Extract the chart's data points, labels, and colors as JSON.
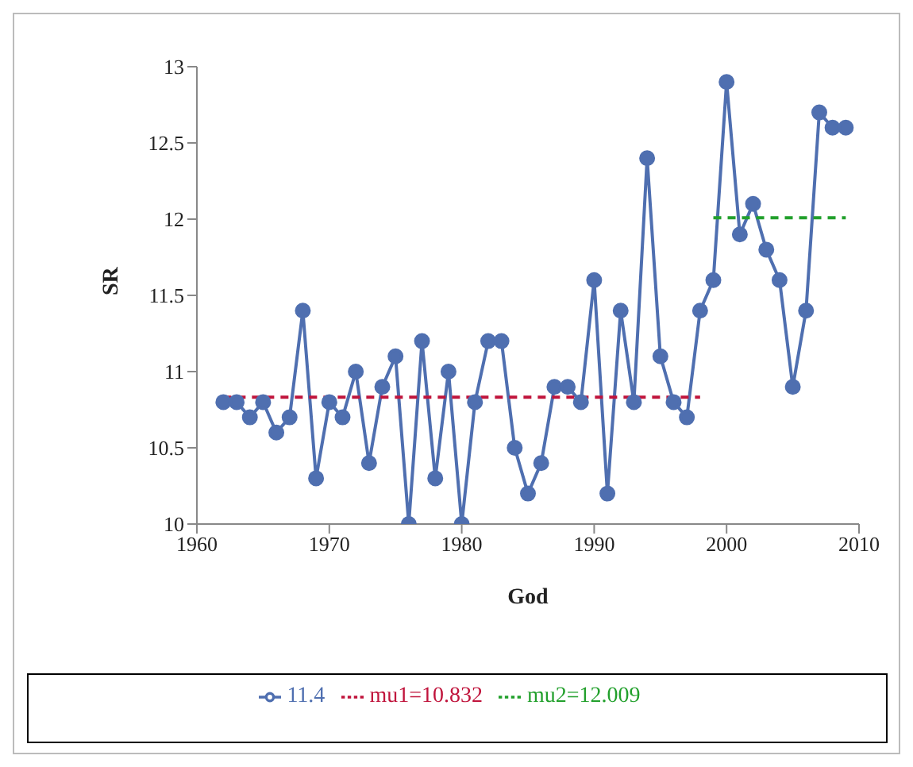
{
  "chart_data": {
    "type": "line",
    "xlabel": "God",
    "ylabel": "SR",
    "x": [
      1962,
      1963,
      1964,
      1965,
      1966,
      1967,
      1968,
      1969,
      1970,
      1971,
      1972,
      1973,
      1974,
      1975,
      1976,
      1977,
      1978,
      1979,
      1980,
      1981,
      1982,
      1983,
      1984,
      1985,
      1986,
      1987,
      1988,
      1989,
      1990,
      1991,
      1992,
      1993,
      1994,
      1995,
      1996,
      1997,
      1998,
      1999,
      2000,
      2001,
      2002,
      2003,
      2004,
      2005,
      2006,
      2007,
      2008,
      2009
    ],
    "series": [
      {
        "name": "11.4",
        "color": "#4f6fb0",
        "marker": "circle",
        "line_style": "solid",
        "values": [
          10.8,
          10.8,
          10.7,
          10.8,
          10.6,
          10.7,
          11.4,
          10.3,
          10.8,
          10.7,
          11.0,
          10.4,
          10.9,
          11.1,
          10.0,
          11.2,
          10.3,
          11.0,
          10.0,
          10.8,
          11.2,
          11.2,
          10.5,
          10.2,
          10.4,
          10.9,
          10.9,
          10.8,
          11.6,
          10.2,
          11.4,
          10.8,
          12.4,
          11.1,
          10.8,
          10.7,
          11.4,
          11.6,
          12.9,
          11.9,
          12.1,
          11.8,
          11.6,
          10.9,
          11.4,
          12.7,
          12.6,
          12.6
        ]
      },
      {
        "name": "mu1=10.832",
        "color": "#c0143c",
        "marker": "none",
        "line_style": "dashed",
        "x": [
          1962,
          1998
        ],
        "values": [
          10.832,
          10.832
        ]
      },
      {
        "name": "mu2=12.009",
        "color": "#22a02c",
        "marker": "none",
        "line_style": "dashed",
        "x": [
          1999,
          2009
        ],
        "values": [
          12.009,
          12.009
        ]
      }
    ],
    "xlim": [
      1960,
      2010
    ],
    "xticks": [
      1960,
      1970,
      1980,
      1990,
      2000,
      2010
    ],
    "ylim": [
      10,
      13
    ],
    "yticks": [
      10,
      10.5,
      11,
      11.5,
      12,
      12.5,
      13
    ],
    "grid": false,
    "legend": "bottom"
  }
}
